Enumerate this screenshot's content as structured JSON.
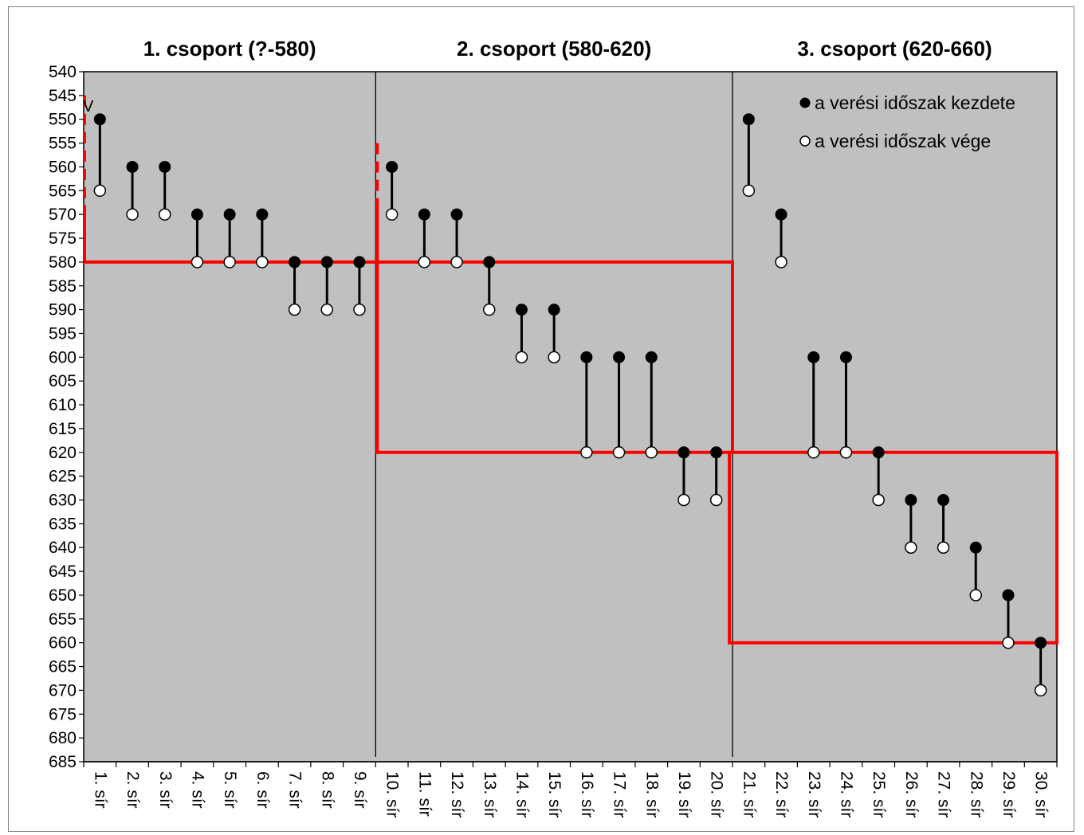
{
  "chart_data": {
    "type": "dumbbell",
    "title": "",
    "xlabel": "",
    "ylabel": "",
    "ylim": [
      540,
      685
    ],
    "y_inverted": true,
    "y_ticks": [
      540,
      545,
      550,
      555,
      560,
      565,
      570,
      575,
      580,
      585,
      590,
      595,
      600,
      605,
      610,
      615,
      620,
      625,
      630,
      635,
      640,
      645,
      650,
      655,
      660,
      665,
      670,
      675,
      680,
      685
    ],
    "categories": [
      "1. sír",
      "2. sír",
      "3. sír",
      "4. sír",
      "5. sír",
      "6. sír",
      "7. sír",
      "8. sír",
      "9. sír",
      "10. sír",
      "11. sír",
      "12. sír",
      "13. sír",
      "14. sír",
      "15. sír",
      "16. sír",
      "17. sír",
      "18. sír",
      "19. sír",
      "20. sír",
      "21. sír",
      "22. sír",
      "23. sír",
      "24. sír",
      "25. sír",
      "26. sír",
      "27. sír",
      "28. sír",
      "29. sír",
      "30. sír"
    ],
    "series": [
      {
        "name": "a verési időszak kezdete",
        "marker": "filled",
        "values": [
          550,
          560,
          560,
          570,
          570,
          570,
          580,
          580,
          580,
          560,
          570,
          570,
          580,
          590,
          590,
          600,
          600,
          600,
          620,
          620,
          550,
          570,
          600,
          600,
          620,
          630,
          630,
          640,
          650,
          660
        ]
      },
      {
        "name": "a verési időszak vége",
        "marker": "hollow",
        "values": [
          565,
          570,
          570,
          580,
          580,
          580,
          590,
          590,
          590,
          570,
          580,
          580,
          590,
          600,
          600,
          620,
          620,
          620,
          630,
          630,
          565,
          580,
          620,
          620,
          630,
          640,
          640,
          650,
          660,
          670
        ]
      }
    ],
    "groups": [
      {
        "label": "1. csoport (?-580)",
        "from": 1,
        "to": 9
      },
      {
        "label": "2. csoport (580-620)",
        "from": 10,
        "to": 20
      },
      {
        "label": "3. csoport (620-660)",
        "from": 21,
        "to": 30
      }
    ],
    "annotation": "V",
    "grid": false,
    "legend_position": "top-right",
    "colors": {
      "plot_bg": "#c0c0c0",
      "highlight": "#ff0000",
      "markers": "#000000"
    }
  }
}
